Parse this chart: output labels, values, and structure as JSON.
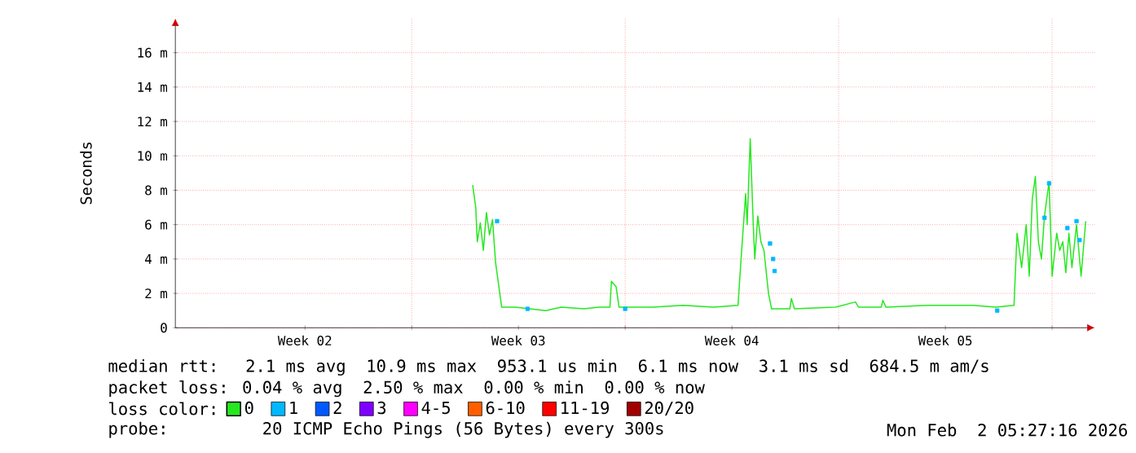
{
  "chart_data": {
    "type": "line",
    "ylabel": "Seconds",
    "legend_title": "loss color:",
    "legend": "bottom",
    "grid": true,
    "xlim": [
      "2026-01-03T06:00",
      "2026-02-02T09:36"
    ],
    "xticks": [
      {
        "value": "2026-01-07T12:00",
        "label": "Week 02"
      },
      {
        "value": "2026-01-14T12:00",
        "label": "Week 03"
      },
      {
        "value": "2026-01-21T12:00",
        "label": "Week 04"
      },
      {
        "value": "2026-01-28T12:00",
        "label": "Week 05"
      },
      {
        "value": "2026-01-11",
        "label": null
      },
      {
        "value": "2026-01-18",
        "label": null
      },
      {
        "value": "2026-01-25",
        "label": null
      },
      {
        "value": "2026-02-01",
        "label": null
      }
    ],
    "ylim": [
      0,
      18
    ],
    "yticks": [
      0,
      {
        "value": 2,
        "label": "2 m"
      },
      {
        "value": 4,
        "label": "4 m"
      },
      {
        "value": 6,
        "label": "6 m"
      },
      {
        "value": 8,
        "label": "8 m"
      },
      {
        "value": 10,
        "label": "10 m"
      },
      {
        "value": 12,
        "label": "12 m"
      },
      {
        "value": 14,
        "label": "14 m"
      },
      {
        "value": 16,
        "label": "16 m"
      }
    ],
    "series": [
      {
        "name": "0",
        "color": "#26e81f",
        "x": [
          "2026-01-13T00:00",
          "2026-01-13T02:24",
          "2026-01-13T03:36",
          "2026-01-13T06:00",
          "2026-01-13T08:24",
          "2026-01-13T10:48",
          "2026-01-13T13:12",
          "2026-01-13T15:36",
          "2026-01-13T18:00",
          "2026-01-13T20:24",
          "2026-01-13T22:48",
          "2026-01-14T09:36",
          "2026-01-14T21:36",
          "2026-01-15T09:36",
          "2026-01-15T21:36",
          "2026-01-16T15:36",
          "2026-01-17T03:36",
          "2026-01-17T12:00",
          "2026-01-17T13:12",
          "2026-01-17T16:48",
          "2026-01-17T19:12",
          "2026-01-18T21:36",
          "2026-01-19T21:36",
          "2026-01-20T21:36",
          "2026-01-21T16:48",
          "2026-01-21T19:12",
          "2026-01-21T22:48",
          "2026-01-22T00:00",
          "2026-01-22T02:24",
          "2026-01-22T04:48",
          "2026-01-22T06:00",
          "2026-01-22T08:24",
          "2026-01-22T10:48",
          "2026-01-22T13:12",
          "2026-01-22T16:48",
          "2026-01-22T19:12",
          "2026-01-23T09:36",
          "2026-01-23T10:48",
          "2026-01-23T13:12",
          "2026-01-24T21:36",
          "2026-01-25T13:12",
          "2026-01-25T15:36",
          "2026-01-26T09:36",
          "2026-01-26T10:48",
          "2026-01-26T13:12",
          "2026-01-27T21:36",
          "2026-01-29T09:36",
          "2026-01-30T03:36",
          "2026-01-30T18:00",
          "2026-01-30T20:24",
          "2026-01-31T00:00",
          "2026-01-31T03:36",
          "2026-01-31T06:00",
          "2026-01-31T08:24",
          "2026-01-31T10:48",
          "2026-01-31T13:12",
          "2026-01-31T15:36",
          "2026-01-31T18:00",
          "2026-01-31T21:36",
          "2026-02-01T00:00",
          "2026-02-01T03:36",
          "2026-02-01T06:00",
          "2026-02-01T08:24",
          "2026-02-01T10:48",
          "2026-02-01T13:12",
          "2026-02-01T15:36",
          "2026-02-01T19:12",
          "2026-02-01T22:48",
          "2026-02-02T02:24"
        ],
        "values": [
          8.3,
          7.0,
          5.0,
          6.1,
          4.5,
          6.7,
          5.4,
          6.3,
          3.8,
          2.5,
          1.2,
          1.2,
          1.1,
          1.0,
          1.2,
          1.1,
          1.2,
          1.2,
          2.7,
          2.4,
          1.2,
          1.2,
          1.3,
          1.2,
          1.3,
          4.0,
          7.8,
          6.0,
          11.0,
          6.0,
          4.0,
          6.5,
          5.0,
          4.5,
          2.0,
          1.1,
          1.1,
          1.7,
          1.1,
          1.2,
          1.5,
          1.2,
          1.2,
          1.6,
          1.2,
          1.3,
          1.3,
          1.2,
          1.3,
          5.5,
          3.5,
          6.0,
          3.0,
          7.5,
          8.8,
          5.0,
          4.0,
          6.5,
          8.5,
          3.0,
          5.5,
          4.5,
          5.0,
          3.2,
          5.5,
          3.5,
          6.0,
          3.0,
          6.2
        ]
      },
      {
        "name": "1",
        "color": "#00b8ff",
        "type": "scatter",
        "marker": "square",
        "x": [
          "2026-01-13T19:12",
          "2026-01-14T19:12",
          "2026-01-18T00:00",
          "2026-01-22T18:00",
          "2026-01-22T20:24",
          "2026-01-22T21:36",
          "2026-01-30T04:48",
          "2026-01-31T18:00",
          "2026-01-31T21:36",
          "2026-02-01T12:00",
          "2026-02-01T19:12",
          "2026-02-01T21:36"
        ],
        "values": [
          6.2,
          1.1,
          1.1,
          4.9,
          4.0,
          3.3,
          1.0,
          6.4,
          8.4,
          5.8,
          6.2,
          5.1
        ]
      },
      {
        "name": "2",
        "color": "#0059ff"
      },
      {
        "name": "3",
        "color": "#7e00ff"
      },
      {
        "name": "4-5",
        "color": "#ff00ff"
      },
      {
        "name": "6-10",
        "color": "#ff5e00"
      },
      {
        "name": "11-19",
        "color": "#ff0000"
      },
      {
        "name": "20/20",
        "color": "#a10000"
      }
    ],
    "annotations": [
      "median rtt:  2.1 ms avg  10.9 ms max  953.1 us min  6.1 ms now  3.1 ms sd  684.5 m am/s",
      "packet loss: 0.04 % avg  2.50 % max  0.00 % min  0.00 % now",
      "probe:       20 ICMP Echo Pings (56 Bytes) every 300s",
      "Mon Feb  2 05:27:16 2026"
    ]
  }
}
